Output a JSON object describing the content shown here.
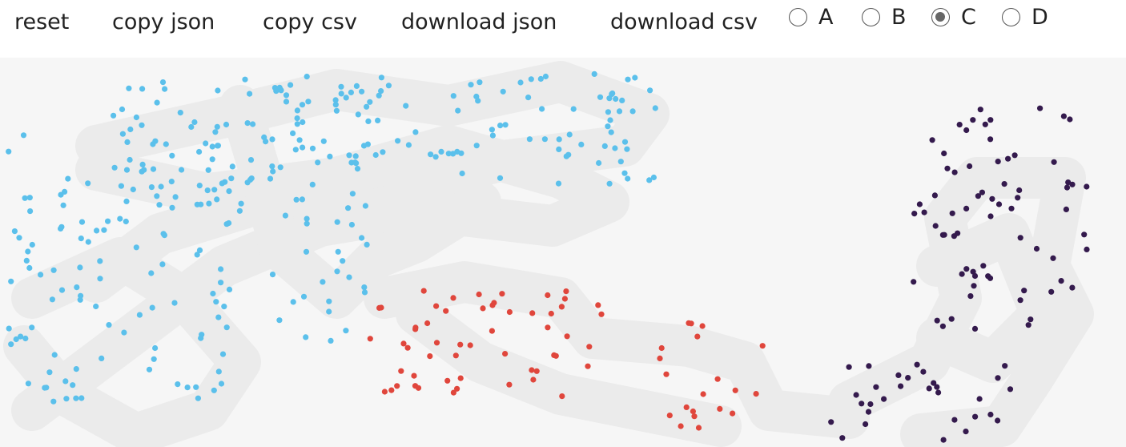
{
  "toolbar": {
    "buttons": [
      "reset",
      "copy json",
      "copy csv",
      "download json",
      "download csv"
    ],
    "options": [
      {
        "label": "A",
        "checked": false
      },
      {
        "label": "B",
        "checked": false
      },
      {
        "label": "C",
        "checked": true
      },
      {
        "label": "D",
        "checked": false
      }
    ]
  }
}
